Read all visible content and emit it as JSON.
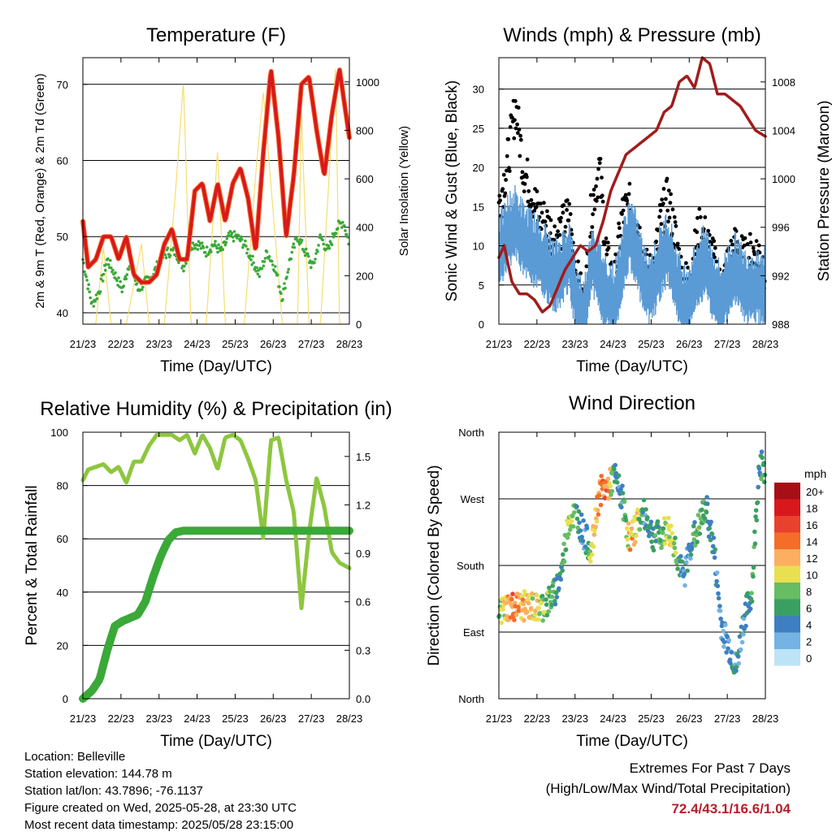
{
  "colors": {
    "temp_2m": "#d7191c",
    "temp_9m": "#f46d29",
    "dewpoint": "#3aa938",
    "solar": "#f5de70",
    "wind": "#5b9bd5",
    "gust": "#000000",
    "pressure": "#a01c1c",
    "rh": "#8dc63f",
    "precip": "#3aa938",
    "extremes_text": "#b5202a"
  },
  "panels": {
    "temperature": {
      "title": "Temperature (F)",
      "xlabel": "Time (Day/UTC)",
      "ylabel_left": "2m & 9m T (Red, Orange) & 2m Td (Green)",
      "ylabel_right": "Solar Insolation (Yellow)"
    },
    "winds": {
      "title": "Winds (mph) & Pressure (mb)",
      "xlabel": "Time (Day/UTC)",
      "ylabel_left": "Sonic Wind & Gust (Blue, Black)",
      "ylabel_right": "Station Pressure (Maroon)"
    },
    "humidity": {
      "title": "Relative Humidity (%) & Precipitation (in)",
      "xlabel": "Time (Day/UTC)",
      "ylabel_left": "Percent & Total Rainfall"
    },
    "direction": {
      "title": "Wind Direction",
      "xlabel": "Time (Day/UTC)",
      "ylabel_left": "Direction (Colored By Speed)",
      "legend_title": "mph"
    }
  },
  "footer": {
    "location": "Location: Belleville",
    "elevation": "Station elevation: 144.78 m",
    "latlon": "Station lat/lon: 43.7896; -76.1137",
    "created": "Figure created on Wed, 2025-05-28, at 23:30 UTC",
    "timestamp": "Most recent data timestamp: 2025/05/28 23:15:00"
  },
  "extremes": {
    "title": "Extremes For Past 7 Days",
    "subtitle": "(High/Low/Max Wind/Total Precipitation)",
    "values": "72.4/43.1/16.6/1.04"
  },
  "chart_data": [
    {
      "type": "line",
      "title": "Temperature (F)",
      "xlabel": "Time (Day/UTC)",
      "x_ticks": [
        "21/23",
        "22/23",
        "23/23",
        "24/23",
        "25/23",
        "26/23",
        "27/23",
        "28/23"
      ],
      "xlim": [
        21.96,
        28.96
      ],
      "ylim": [
        38.5,
        73.5
      ],
      "y_ticks": [
        40,
        50,
        60,
        70
      ],
      "y2lim": [
        0,
        1100
      ],
      "y2_ticks": [
        0,
        200,
        400,
        600,
        800,
        1000
      ],
      "series": [
        {
          "name": "2m T",
          "axis": "left",
          "x": [
            21.96,
            22.1,
            22.3,
            22.5,
            22.7,
            22.9,
            23.1,
            23.3,
            23.5,
            23.7,
            23.9,
            24.1,
            24.3,
            24.5,
            24.7,
            24.9,
            25.1,
            25.3,
            25.5,
            25.7,
            25.9,
            26.1,
            26.3,
            26.5,
            26.7,
            26.9,
            27.1,
            27.3,
            27.5,
            27.7,
            27.9,
            28.1,
            28.3,
            28.5,
            28.7,
            28.96
          ],
          "y": [
            52,
            46,
            47,
            50,
            50,
            47,
            50,
            45,
            44,
            44,
            45,
            49,
            51,
            47,
            47,
            56,
            57,
            52,
            57,
            52,
            57,
            59,
            55,
            48,
            61,
            72,
            63,
            50,
            58,
            70,
            71,
            64,
            58,
            66,
            72,
            63
          ]
        },
        {
          "name": "2m Td",
          "axis": "left",
          "x": [
            21.96,
            22.2,
            22.4,
            22.6,
            22.8,
            23.0,
            23.2,
            23.4,
            23.6,
            23.8,
            24.0,
            24.2,
            24.4,
            24.6,
            24.8,
            25.0,
            25.2,
            25.4,
            25.6,
            25.8,
            26.0,
            26.2,
            26.4,
            26.6,
            26.8,
            27.0,
            27.2,
            27.4,
            27.6,
            27.8,
            28.0,
            28.2,
            28.4,
            28.6,
            28.8,
            28.96
          ],
          "y": [
            47,
            41,
            43,
            47,
            45,
            43,
            47,
            43,
            44,
            45,
            47,
            48,
            48,
            46,
            49,
            49,
            48,
            49,
            48,
            50,
            50,
            49,
            47,
            45,
            48,
            46,
            42,
            47,
            50,
            48,
            46,
            50,
            48,
            51,
            52,
            49
          ]
        },
        {
          "name": "Solar Insolation",
          "axis": "right",
          "x": [
            21.96,
            22.3,
            22.5,
            22.7,
            23.1,
            23.5,
            23.7,
            24.1,
            24.4,
            24.6,
            24.8,
            25.2,
            25.5,
            25.7,
            25.9,
            26.2,
            26.5,
            26.7,
            27.2,
            27.6,
            27.7,
            27.9,
            28.2,
            28.6,
            28.7,
            28.9
          ],
          "y": [
            0,
            0,
            320,
            0,
            0,
            330,
            0,
            0,
            560,
            1000,
            0,
            0,
            720,
            0,
            0,
            0,
            620,
            960,
            0,
            0,
            880,
            0,
            0,
            1070,
            0,
            0
          ]
        }
      ]
    },
    {
      "type": "scatter",
      "title": "Winds (mph) & Pressure (mb)",
      "xlabel": "Time (Day/UTC)",
      "x_ticks": [
        "21/23",
        "22/23",
        "23/23",
        "24/23",
        "25/23",
        "26/23",
        "27/23",
        "28/23"
      ],
      "xlim": [
        21.96,
        28.96
      ],
      "ylim": [
        0,
        34
      ],
      "y_ticks": [
        0,
        5,
        10,
        15,
        20,
        25,
        30
      ],
      "y2lim": [
        988,
        1010
      ],
      "y2_ticks": [
        988,
        992,
        996,
        1000,
        1004,
        1008
      ],
      "series": [
        {
          "name": "Sonic Wind",
          "x": [
            21.96,
            22.2,
            22.4,
            22.6,
            22.8,
            23.0,
            23.2,
            23.4,
            23.6,
            23.8,
            24.0,
            24.2,
            24.4,
            24.6,
            24.8,
            25.0,
            25.2,
            25.4,
            25.6,
            25.8,
            26.0,
            26.2,
            26.4,
            26.6,
            26.8,
            27.0,
            27.2,
            27.4,
            27.6,
            27.8,
            28.0,
            28.2,
            28.4,
            28.6,
            28.8,
            28.96
          ],
          "y": [
            9,
            12,
            13,
            11,
            10,
            9,
            8,
            6,
            7,
            9,
            3,
            1,
            9,
            6,
            4,
            3,
            8,
            12,
            9,
            5,
            5,
            8,
            10,
            6,
            3,
            4,
            7,
            8,
            5,
            3,
            6,
            7,
            5,
            5,
            5,
            5
          ]
        },
        {
          "name": "Gust",
          "x": [
            21.96,
            22.2,
            22.4,
            22.6,
            22.8,
            23.0,
            23.2,
            23.4,
            23.6,
            23.8,
            24.0,
            24.2,
            24.4,
            24.6,
            24.8,
            25.0,
            25.2,
            25.4,
            25.6,
            25.8,
            26.0,
            26.2,
            26.4,
            26.6,
            26.8,
            27.0,
            27.2,
            27.4,
            27.6,
            27.8,
            28.0,
            28.2,
            28.4,
            28.6,
            28.8,
            28.96
          ],
          "y": [
            15,
            21,
            28,
            20,
            17,
            14,
            13,
            11,
            12,
            14,
            6,
            2,
            15,
            20,
            8,
            5,
            14,
            15,
            13,
            7,
            6,
            13,
            16,
            11,
            5,
            6,
            12,
            11,
            8,
            4,
            8,
            10,
            8,
            9,
            9,
            7
          ]
        },
        {
          "name": "Station Pressure",
          "axis": "right",
          "x": [
            21.96,
            22.1,
            22.3,
            22.5,
            22.7,
            22.9,
            23.1,
            23.3,
            23.5,
            23.7,
            23.9,
            24.1,
            24.3,
            24.5,
            24.7,
            24.9,
            25.1,
            25.3,
            25.5,
            25.7,
            25.9,
            26.1,
            26.3,
            26.5,
            26.7,
            26.9,
            27.1,
            27.3,
            27.5,
            27.7,
            27.9,
            28.1,
            28.3,
            28.5,
            28.7,
            28.96
          ],
          "y": [
            993.5,
            994.5,
            991.5,
            990.5,
            990.5,
            990,
            989,
            989.5,
            991,
            992.5,
            993.5,
            994.5,
            994,
            994.5,
            996.5,
            999,
            1000.5,
            1002,
            1002.5,
            1003,
            1003.5,
            1004,
            1005.5,
            1006,
            1008,
            1008.5,
            1007.5,
            1010,
            1009.5,
            1007,
            1007,
            1006.5,
            1006,
            1005,
            1004,
            1003.5
          ]
        }
      ]
    },
    {
      "type": "line",
      "title": "Relative Humidity (%) & Precipitation (in)",
      "xlabel": "Time (Day/UTC)",
      "x_ticks": [
        "21/23",
        "22/23",
        "23/23",
        "24/23",
        "25/23",
        "26/23",
        "27/23",
        "28/23"
      ],
      "xlim": [
        21.96,
        28.96
      ],
      "ylim": [
        0,
        100
      ],
      "y_ticks": [
        0,
        20,
        40,
        60,
        80,
        100
      ],
      "y2lim": [
        0,
        1.65
      ],
      "y2_ticks": [
        0.0,
        0.3,
        0.6,
        0.9,
        1.2,
        1.5
      ],
      "series": [
        {
          "name": "Relative Humidity",
          "axis": "left",
          "x": [
            21.96,
            22.1,
            22.3,
            22.5,
            22.7,
            22.9,
            23.1,
            23.3,
            23.5,
            23.7,
            23.9,
            24.1,
            24.3,
            24.5,
            24.7,
            24.9,
            25.1,
            25.3,
            25.5,
            25.7,
            25.9,
            26.1,
            26.3,
            26.5,
            26.7,
            26.9,
            27.1,
            27.3,
            27.5,
            27.7,
            27.9,
            28.1,
            28.3,
            28.5,
            28.7,
            28.96
          ],
          "y": [
            82,
            86,
            87,
            88,
            85,
            87,
            81,
            89,
            89,
            95,
            99,
            99,
            99,
            97,
            99,
            92,
            99,
            94,
            86,
            98,
            99,
            97,
            90,
            82,
            60,
            97,
            98,
            82,
            70,
            34,
            62,
            83,
            72,
            55,
            51,
            49
          ]
        },
        {
          "name": "Total Precipitation",
          "axis": "right",
          "x": [
            21.96,
            22.2,
            22.4,
            22.6,
            22.8,
            23.0,
            23.2,
            23.4,
            23.6,
            23.8,
            24.0,
            24.2,
            24.4,
            24.6,
            25.0,
            25.5,
            26.0,
            26.5,
            27.0,
            27.5,
            28.0,
            28.5,
            28.96
          ],
          "y": [
            0.0,
            0.05,
            0.12,
            0.3,
            0.45,
            0.48,
            0.5,
            0.52,
            0.6,
            0.75,
            0.88,
            0.98,
            1.03,
            1.04,
            1.04,
            1.04,
            1.04,
            1.04,
            1.04,
            1.04,
            1.04,
            1.04,
            1.04
          ]
        }
      ]
    },
    {
      "type": "scatter",
      "title": "Wind Direction",
      "xlabel": "Time (Day/UTC)",
      "x_ticks": [
        "21/23",
        "22/23",
        "23/23",
        "24/23",
        "25/23",
        "26/23",
        "27/23",
        "28/23"
      ],
      "xlim": [
        21.96,
        28.96
      ],
      "y_ticks": [
        "North",
        "East",
        "South",
        "West",
        "North"
      ],
      "ylim": [
        0,
        360
      ],
      "legend": {
        "title": "mph",
        "labels": [
          "20+",
          "18",
          "16",
          "14",
          "12",
          "10",
          "8",
          "6",
          "4",
          "2",
          "0"
        ],
        "colors": [
          "#a50f15",
          "#d7191c",
          "#e8412d",
          "#f46d29",
          "#fdae61",
          "#e8e050",
          "#66bd63",
          "#3aa061",
          "#3e7fc1",
          "#74b3e3",
          "#bde3f7"
        ]
      },
      "series": [
        {
          "name": "Direction",
          "x": [
            21.96,
            22.2,
            22.4,
            22.6,
            22.8,
            23.0,
            23.2,
            23.4,
            23.6,
            23.8,
            24.0,
            24.2,
            24.4,
            24.6,
            24.8,
            25.0,
            25.2,
            25.4,
            25.6,
            25.8,
            26.0,
            26.2,
            26.4,
            26.6,
            26.8,
            27.0,
            27.2,
            27.4,
            27.6,
            27.8,
            28.0,
            28.2,
            28.4,
            28.6,
            28.8,
            28.96
          ],
          "y": [
            115,
            125,
            125,
            125,
            125,
            122,
            128,
            140,
            170,
            245,
            250,
            220,
            200,
            280,
            285,
            300,
            270,
            210,
            240,
            250,
            220,
            220,
            230,
            205,
            160,
            210,
            230,
            260,
            205,
            100,
            70,
            40,
            110,
            140,
            320,
            310
          ],
          "speed": [
            8,
            12,
            14,
            12,
            10,
            9,
            8,
            6,
            5,
            10,
            6,
            3,
            10,
            14,
            14,
            5,
            4,
            12,
            10,
            4,
            5,
            6,
            10,
            8,
            3,
            4,
            8,
            6,
            4,
            3,
            3,
            4,
            4,
            6,
            6,
            6
          ]
        }
      ]
    }
  ]
}
